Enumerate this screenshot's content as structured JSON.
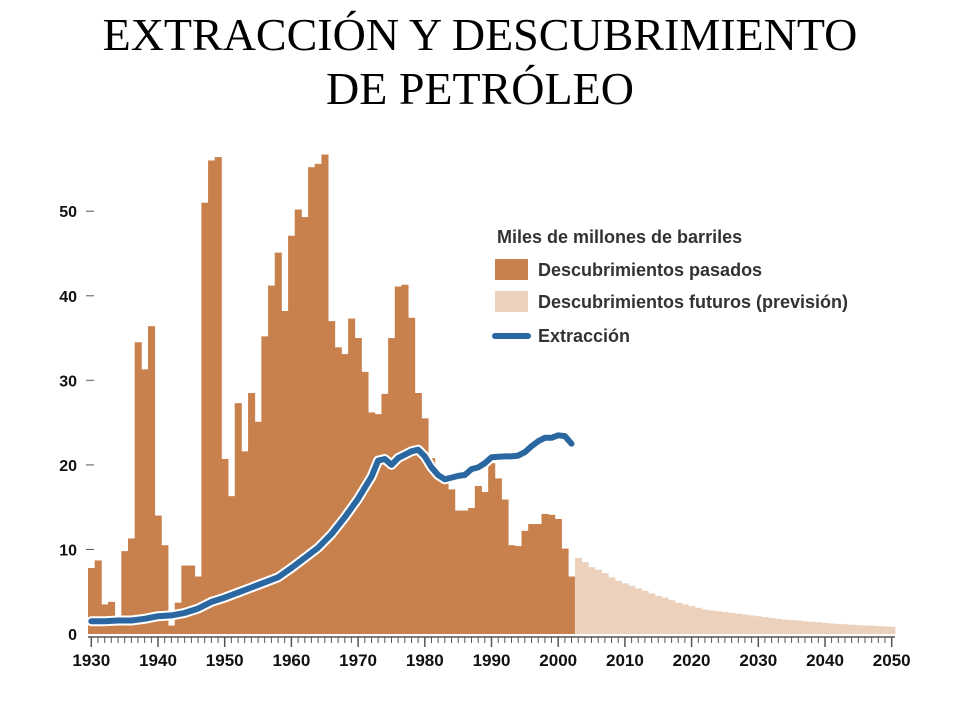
{
  "title": {
    "line1": "EXTRACCIÓN Y DESCUBRIMIENTO",
    "line2": "DE  PETRÓLEO"
  },
  "colors": {
    "past": "#c8804c",
    "future": "#ecd2bc",
    "extraction": "#2a67a0",
    "axis": "#555555"
  },
  "chart_data": {
    "type": "bar",
    "title": "",
    "xlabel": "",
    "ylabel": "",
    "xlim": [
      1929.5,
      2050.5
    ],
    "ylim": [
      0,
      57
    ],
    "y_ticks": [
      0,
      10,
      20,
      30,
      40,
      50
    ],
    "x_ticks": [
      1930,
      1940,
      1950,
      1960,
      1970,
      1980,
      1990,
      2000,
      2010,
      2020,
      2030,
      2040,
      2050
    ],
    "grid": false,
    "legend": {
      "position": "top-right",
      "heading": "Miles de millones de barriles",
      "entries": [
        "Descubrimientos pasados",
        "Descubrimientos futuros (previsión)",
        "Extracción"
      ]
    },
    "series": [
      {
        "name": "Descubrimientos pasados",
        "kind": "bar",
        "x": [
          1930,
          1931,
          1932,
          1933,
          1934,
          1935,
          1936,
          1937,
          1938,
          1939,
          1940,
          1941,
          1942,
          1943,
          1944,
          1945,
          1946,
          1947,
          1948,
          1949,
          1950,
          1951,
          1952,
          1953,
          1954,
          1955,
          1956,
          1957,
          1958,
          1959,
          1960,
          1961,
          1962,
          1963,
          1964,
          1965,
          1966,
          1967,
          1968,
          1969,
          1970,
          1971,
          1972,
          1973,
          1974,
          1975,
          1976,
          1977,
          1978,
          1979,
          1980,
          1981,
          1982,
          1983,
          1984,
          1985,
          1986,
          1987,
          1988,
          1989,
          1990,
          1991,
          1992,
          1993,
          1994,
          1995,
          1996,
          1997,
          1998,
          1999,
          2000,
          2001,
          2002
        ],
        "values": [
          7.8,
          8.7,
          3.5,
          3.8,
          1.0,
          9.8,
          11.3,
          34.5,
          31.3,
          36.4,
          14.0,
          10.5,
          1.0,
          3.7,
          8.1,
          8.1,
          6.8,
          51.0,
          56.0,
          56.4,
          20.7,
          16.3,
          27.3,
          21.6,
          28.5,
          25.1,
          35.2,
          41.2,
          45.1,
          38.2,
          47.1,
          50.2,
          49.3,
          55.2,
          55.6,
          56.7,
          37.0,
          33.9,
          33.1,
          37.3,
          35.0,
          31.0,
          26.2,
          26.0,
          28.4,
          35.0,
          41.1,
          41.3,
          37.4,
          28.5,
          25.5,
          20.8,
          19.0,
          18.1,
          17.1,
          14.6,
          14.6,
          14.9,
          17.5,
          16.8,
          20.2,
          18.4,
          15.9,
          10.5,
          10.4,
          12.2,
          13.0,
          13.0,
          14.2,
          14.1,
          13.6,
          10.1,
          6.8
        ]
      },
      {
        "name": "Descubrimientos futuros (previsión)",
        "kind": "bar",
        "x": [
          2003,
          2004,
          2005,
          2006,
          2007,
          2008,
          2009,
          2010,
          2011,
          2012,
          2013,
          2014,
          2015,
          2016,
          2017,
          2018,
          2019,
          2020,
          2021,
          2022,
          2023,
          2024,
          2025,
          2026,
          2027,
          2028,
          2029,
          2030,
          2031,
          2032,
          2033,
          2034,
          2035,
          2036,
          2037,
          2038,
          2039,
          2040,
          2041,
          2042,
          2043,
          2044,
          2045,
          2046,
          2047,
          2048,
          2049,
          2050
        ],
        "values": [
          9.0,
          8.5,
          7.9,
          7.6,
          7.2,
          6.7,
          6.3,
          6.0,
          5.7,
          5.4,
          5.1,
          4.8,
          4.5,
          4.3,
          4.0,
          3.7,
          3.5,
          3.3,
          3.1,
          2.9,
          2.8,
          2.7,
          2.6,
          2.5,
          2.4,
          2.3,
          2.2,
          2.1,
          2.0,
          1.9,
          1.8,
          1.7,
          1.65,
          1.6,
          1.5,
          1.45,
          1.4,
          1.3,
          1.25,
          1.2,
          1.15,
          1.1,
          1.05,
          1.0,
          1.0,
          0.95,
          0.9,
          0.85
        ]
      },
      {
        "name": "Extracción",
        "kind": "line",
        "x": [
          1930,
          1932,
          1934,
          1936,
          1938,
          1940,
          1942,
          1944,
          1946,
          1948,
          1950,
          1952,
          1954,
          1956,
          1958,
          1960,
          1962,
          1964,
          1966,
          1968,
          1970,
          1971,
          1972,
          1973,
          1974,
          1975,
          1976,
          1978,
          1979,
          1980,
          1981,
          1982,
          1983,
          1984,
          1985,
          1986,
          1987,
          1988,
          1989,
          1990,
          1992,
          1993,
          1994,
          1995,
          1996,
          1997,
          1998,
          1999,
          2000,
          2001,
          2002
        ],
        "values": [
          1.5,
          1.5,
          1.6,
          1.6,
          1.8,
          2.1,
          2.2,
          2.5,
          3.0,
          3.8,
          4.3,
          4.9,
          5.5,
          6.1,
          6.7,
          7.8,
          9.0,
          10.2,
          11.8,
          13.8,
          16.0,
          17.3,
          18.6,
          20.5,
          20.7,
          20.0,
          20.8,
          21.6,
          21.8,
          21.0,
          19.7,
          18.8,
          18.3,
          18.5,
          18.7,
          18.8,
          19.5,
          19.7,
          20.2,
          20.9,
          21.0,
          21.0,
          21.1,
          21.5,
          22.2,
          22.8,
          23.2,
          23.2,
          23.5,
          23.4,
          22.5
        ]
      }
    ]
  }
}
